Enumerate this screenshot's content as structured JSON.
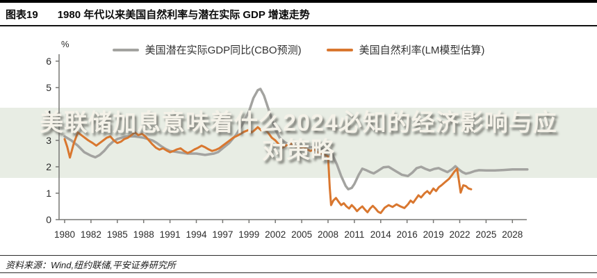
{
  "header": {
    "figure_label": "图表19",
    "title": "1980 年代以来美国自然利率与潜在实际 GDP 增速走势"
  },
  "watermark": {
    "line1": "美联储加息意味着什么2024必知的经济影响与应",
    "line2": "对策略",
    "band_color": "#E8EDE4",
    "text_color": "#F5F2E9"
  },
  "footer": {
    "source": "资料来源：Wind,纽约联储,平安证券研究所"
  },
  "chart_data": {
    "type": "line",
    "unit_label": "%",
    "ylim": [
      0,
      6
    ],
    "y_ticks": [
      0,
      1,
      2,
      3,
      4,
      5,
      6
    ],
    "x_tick_years": [
      1980,
      1982,
      1985,
      1988,
      1991,
      1994,
      1997,
      1999,
      2002,
      2005,
      2008,
      2011,
      2014,
      2016,
      2019,
      2022,
      2025,
      2028
    ],
    "grid": false,
    "legend_position": "top",
    "axis_color": "#777774",
    "tick_label_color": "#2b2b2b",
    "series": [
      {
        "id": "potential-gdp",
        "name": "美国潜在实际GDP同比(CBO预测)",
        "color": "#A3A3A0",
        "points": [
          [
            1980,
            3.15
          ],
          [
            1980.5,
            3.0
          ],
          [
            1981,
            2.8
          ],
          [
            1981.5,
            2.55
          ],
          [
            1982,
            2.42
          ],
          [
            1982.5,
            2.36
          ],
          [
            1983,
            2.45
          ],
          [
            1983.5,
            2.6
          ],
          [
            1984,
            2.8
          ],
          [
            1984.5,
            2.95
          ],
          [
            1985,
            3.05
          ],
          [
            1985.5,
            3.1
          ],
          [
            1986,
            3.15
          ],
          [
            1987,
            3.15
          ],
          [
            1988,
            3.1
          ],
          [
            1989,
            3.0
          ],
          [
            1989.5,
            2.9
          ],
          [
            1990,
            2.78
          ],
          [
            1990.5,
            2.68
          ],
          [
            1991,
            2.6
          ],
          [
            1992,
            2.55
          ],
          [
            1993,
            2.5
          ],
          [
            1994,
            2.5
          ],
          [
            1995,
            2.45
          ],
          [
            1996,
            2.5
          ],
          [
            1996.5,
            2.56
          ],
          [
            1997,
            2.7
          ],
          [
            1997.5,
            2.9
          ],
          [
            1998,
            3.2
          ],
          [
            1998.5,
            3.6
          ],
          [
            1999,
            4.1
          ],
          [
            1999.5,
            4.6
          ],
          [
            2000,
            4.9
          ],
          [
            2000.3,
            4.95
          ],
          [
            2000.7,
            4.7
          ],
          [
            2001,
            4.4
          ],
          [
            2001.5,
            3.9
          ],
          [
            2002,
            3.4
          ],
          [
            2002.5,
            3.1
          ],
          [
            2003,
            2.95
          ],
          [
            2003.5,
            2.85
          ],
          [
            2004,
            2.8
          ],
          [
            2005,
            2.78
          ],
          [
            2006,
            2.75
          ],
          [
            2007,
            2.7
          ],
          [
            2008,
            2.6
          ],
          [
            2008.5,
            2.45
          ],
          [
            2009,
            2.1
          ],
          [
            2009.5,
            1.65
          ],
          [
            2010,
            1.28
          ],
          [
            2010.3,
            1.15
          ],
          [
            2010.7,
            1.2
          ],
          [
            2011,
            1.35
          ],
          [
            2011.5,
            1.7
          ],
          [
            2011.9,
            1.93
          ],
          [
            2012.3,
            1.88
          ],
          [
            2012.8,
            1.8
          ],
          [
            2013.2,
            1.75
          ],
          [
            2013.7,
            1.85
          ],
          [
            2014.2,
            1.98
          ],
          [
            2014.6,
            2.0
          ],
          [
            2015.1,
            1.85
          ],
          [
            2015.6,
            1.7
          ],
          [
            2016.1,
            1.65
          ],
          [
            2016.6,
            1.78
          ],
          [
            2017.1,
            1.95
          ],
          [
            2017.6,
            2.0
          ],
          [
            2018.1,
            1.92
          ],
          [
            2018.6,
            1.86
          ],
          [
            2019.1,
            1.92
          ],
          [
            2019.6,
            1.95
          ],
          [
            2020.1,
            1.87
          ],
          [
            2020.6,
            1.8
          ],
          [
            2021.1,
            1.9
          ],
          [
            2021.5,
            2.02
          ],
          [
            2021.9,
            1.9
          ],
          [
            2022.3,
            1.8
          ],
          [
            2022.7,
            1.74
          ],
          [
            2023.2,
            1.78
          ],
          [
            2023.7,
            1.84
          ],
          [
            2024.2,
            1.87
          ],
          [
            2025,
            1.86
          ],
          [
            2026,
            1.86
          ],
          [
            2027,
            1.88
          ],
          [
            2028,
            1.9
          ],
          [
            2029,
            1.9
          ],
          [
            2029.7,
            1.9
          ]
        ]
      },
      {
        "id": "natural-rate",
        "name": "美国自然利率(LM模型估算)",
        "color": "#D9772F",
        "points": [
          [
            1980,
            3.05
          ],
          [
            1980.2,
            2.75
          ],
          [
            1980.4,
            2.35
          ],
          [
            1980.7,
            2.9
          ],
          [
            1981,
            3.3
          ],
          [
            1981.4,
            3.15
          ],
          [
            1981.8,
            3.0
          ],
          [
            1982.2,
            2.9
          ],
          [
            1982.6,
            2.8
          ],
          [
            1983,
            2.9
          ],
          [
            1983.4,
            3.0
          ],
          [
            1983.8,
            3.1
          ],
          [
            1984.2,
            3.15
          ],
          [
            1984.6,
            3.0
          ],
          [
            1985,
            2.9
          ],
          [
            1985.4,
            2.95
          ],
          [
            1985.8,
            3.05
          ],
          [
            1986.2,
            3.1
          ],
          [
            1986.6,
            3.2
          ],
          [
            1987,
            3.3
          ],
          [
            1987.4,
            3.2
          ],
          [
            1987.8,
            3.25
          ],
          [
            1988.2,
            3.15
          ],
          [
            1988.6,
            3.0
          ],
          [
            1989,
            2.85
          ],
          [
            1989.4,
            2.72
          ],
          [
            1989.8,
            2.65
          ],
          [
            1990.2,
            2.7
          ],
          [
            1990.6,
            2.62
          ],
          [
            1991,
            2.55
          ],
          [
            1991.4,
            2.6
          ],
          [
            1991.8,
            2.66
          ],
          [
            1992.2,
            2.7
          ],
          [
            1992.6,
            2.6
          ],
          [
            1993,
            2.52
          ],
          [
            1993.4,
            2.58
          ],
          [
            1993.8,
            2.66
          ],
          [
            1994.2,
            2.72
          ],
          [
            1994.6,
            2.8
          ],
          [
            1995,
            2.74
          ],
          [
            1995.4,
            2.66
          ],
          [
            1995.8,
            2.6
          ],
          [
            1996.2,
            2.64
          ],
          [
            1996.6,
            2.7
          ],
          [
            1997,
            2.8
          ],
          [
            1997.4,
            2.95
          ],
          [
            1997.8,
            3.1
          ],
          [
            1998.2,
            3.2
          ],
          [
            1998.6,
            3.32
          ],
          [
            1999,
            3.4
          ],
          [
            1999.3,
            3.3
          ],
          [
            1999.6,
            3.38
          ],
          [
            2000,
            3.5
          ],
          [
            2000.4,
            3.38
          ],
          [
            2000.8,
            3.42
          ],
          [
            2001.2,
            3.28
          ],
          [
            2001.6,
            3.1
          ],
          [
            2002,
            3.0
          ],
          [
            2002.4,
            2.85
          ],
          [
            2002.8,
            2.72
          ],
          [
            2003.2,
            2.8
          ],
          [
            2003.6,
            2.9
          ],
          [
            2004,
            2.84
          ],
          [
            2004.4,
            2.76
          ],
          [
            2004.8,
            2.7
          ],
          [
            2005.2,
            2.76
          ],
          [
            2005.6,
            2.66
          ],
          [
            2006,
            2.6
          ],
          [
            2006.4,
            2.66
          ],
          [
            2006.8,
            2.56
          ],
          [
            2007.2,
            2.5
          ],
          [
            2007.6,
            2.45
          ],
          [
            2008,
            2.4
          ],
          [
            2008.2,
            1.2
          ],
          [
            2008.35,
            0.55
          ],
          [
            2008.6,
            0.72
          ],
          [
            2008.9,
            0.82
          ],
          [
            2009.2,
            0.68
          ],
          [
            2009.5,
            0.55
          ],
          [
            2009.8,
            0.62
          ],
          [
            2010.1,
            0.5
          ],
          [
            2010.4,
            0.42
          ],
          [
            2010.7,
            0.55
          ],
          [
            2011,
            0.45
          ],
          [
            2011.3,
            0.32
          ],
          [
            2011.6,
            0.42
          ],
          [
            2011.9,
            0.5
          ],
          [
            2012.2,
            0.38
          ],
          [
            2012.5,
            0.28
          ],
          [
            2012.8,
            0.42
          ],
          [
            2013.1,
            0.52
          ],
          [
            2013.4,
            0.42
          ],
          [
            2013.7,
            0.3
          ],
          [
            2014,
            0.25
          ],
          [
            2014.3,
            0.45
          ],
          [
            2014.6,
            0.55
          ],
          [
            2014.9,
            0.48
          ],
          [
            2015.2,
            0.58
          ],
          [
            2015.5,
            0.5
          ],
          [
            2015.8,
            0.44
          ],
          [
            2016.1,
            0.58
          ],
          [
            2016.4,
            0.72
          ],
          [
            2016.7,
            0.64
          ],
          [
            2017,
            0.78
          ],
          [
            2017.3,
            0.92
          ],
          [
            2017.6,
            0.84
          ],
          [
            2018,
            1.0
          ],
          [
            2018.3,
            1.08
          ],
          [
            2018.6,
            0.98
          ],
          [
            2019,
            1.18
          ],
          [
            2019.3,
            1.08
          ],
          [
            2019.6,
            1.22
          ],
          [
            2020,
            1.32
          ],
          [
            2020.4,
            1.44
          ],
          [
            2020.8,
            1.55
          ],
          [
            2021.1,
            1.68
          ],
          [
            2021.4,
            1.82
          ],
          [
            2021.7,
            1.93
          ],
          [
            2021.9,
            1.5
          ],
          [
            2022.1,
            1.02
          ],
          [
            2022.4,
            1.3
          ],
          [
            2022.7,
            1.27
          ],
          [
            2023,
            1.18
          ],
          [
            2023.3,
            1.15
          ]
        ]
      }
    ]
  }
}
